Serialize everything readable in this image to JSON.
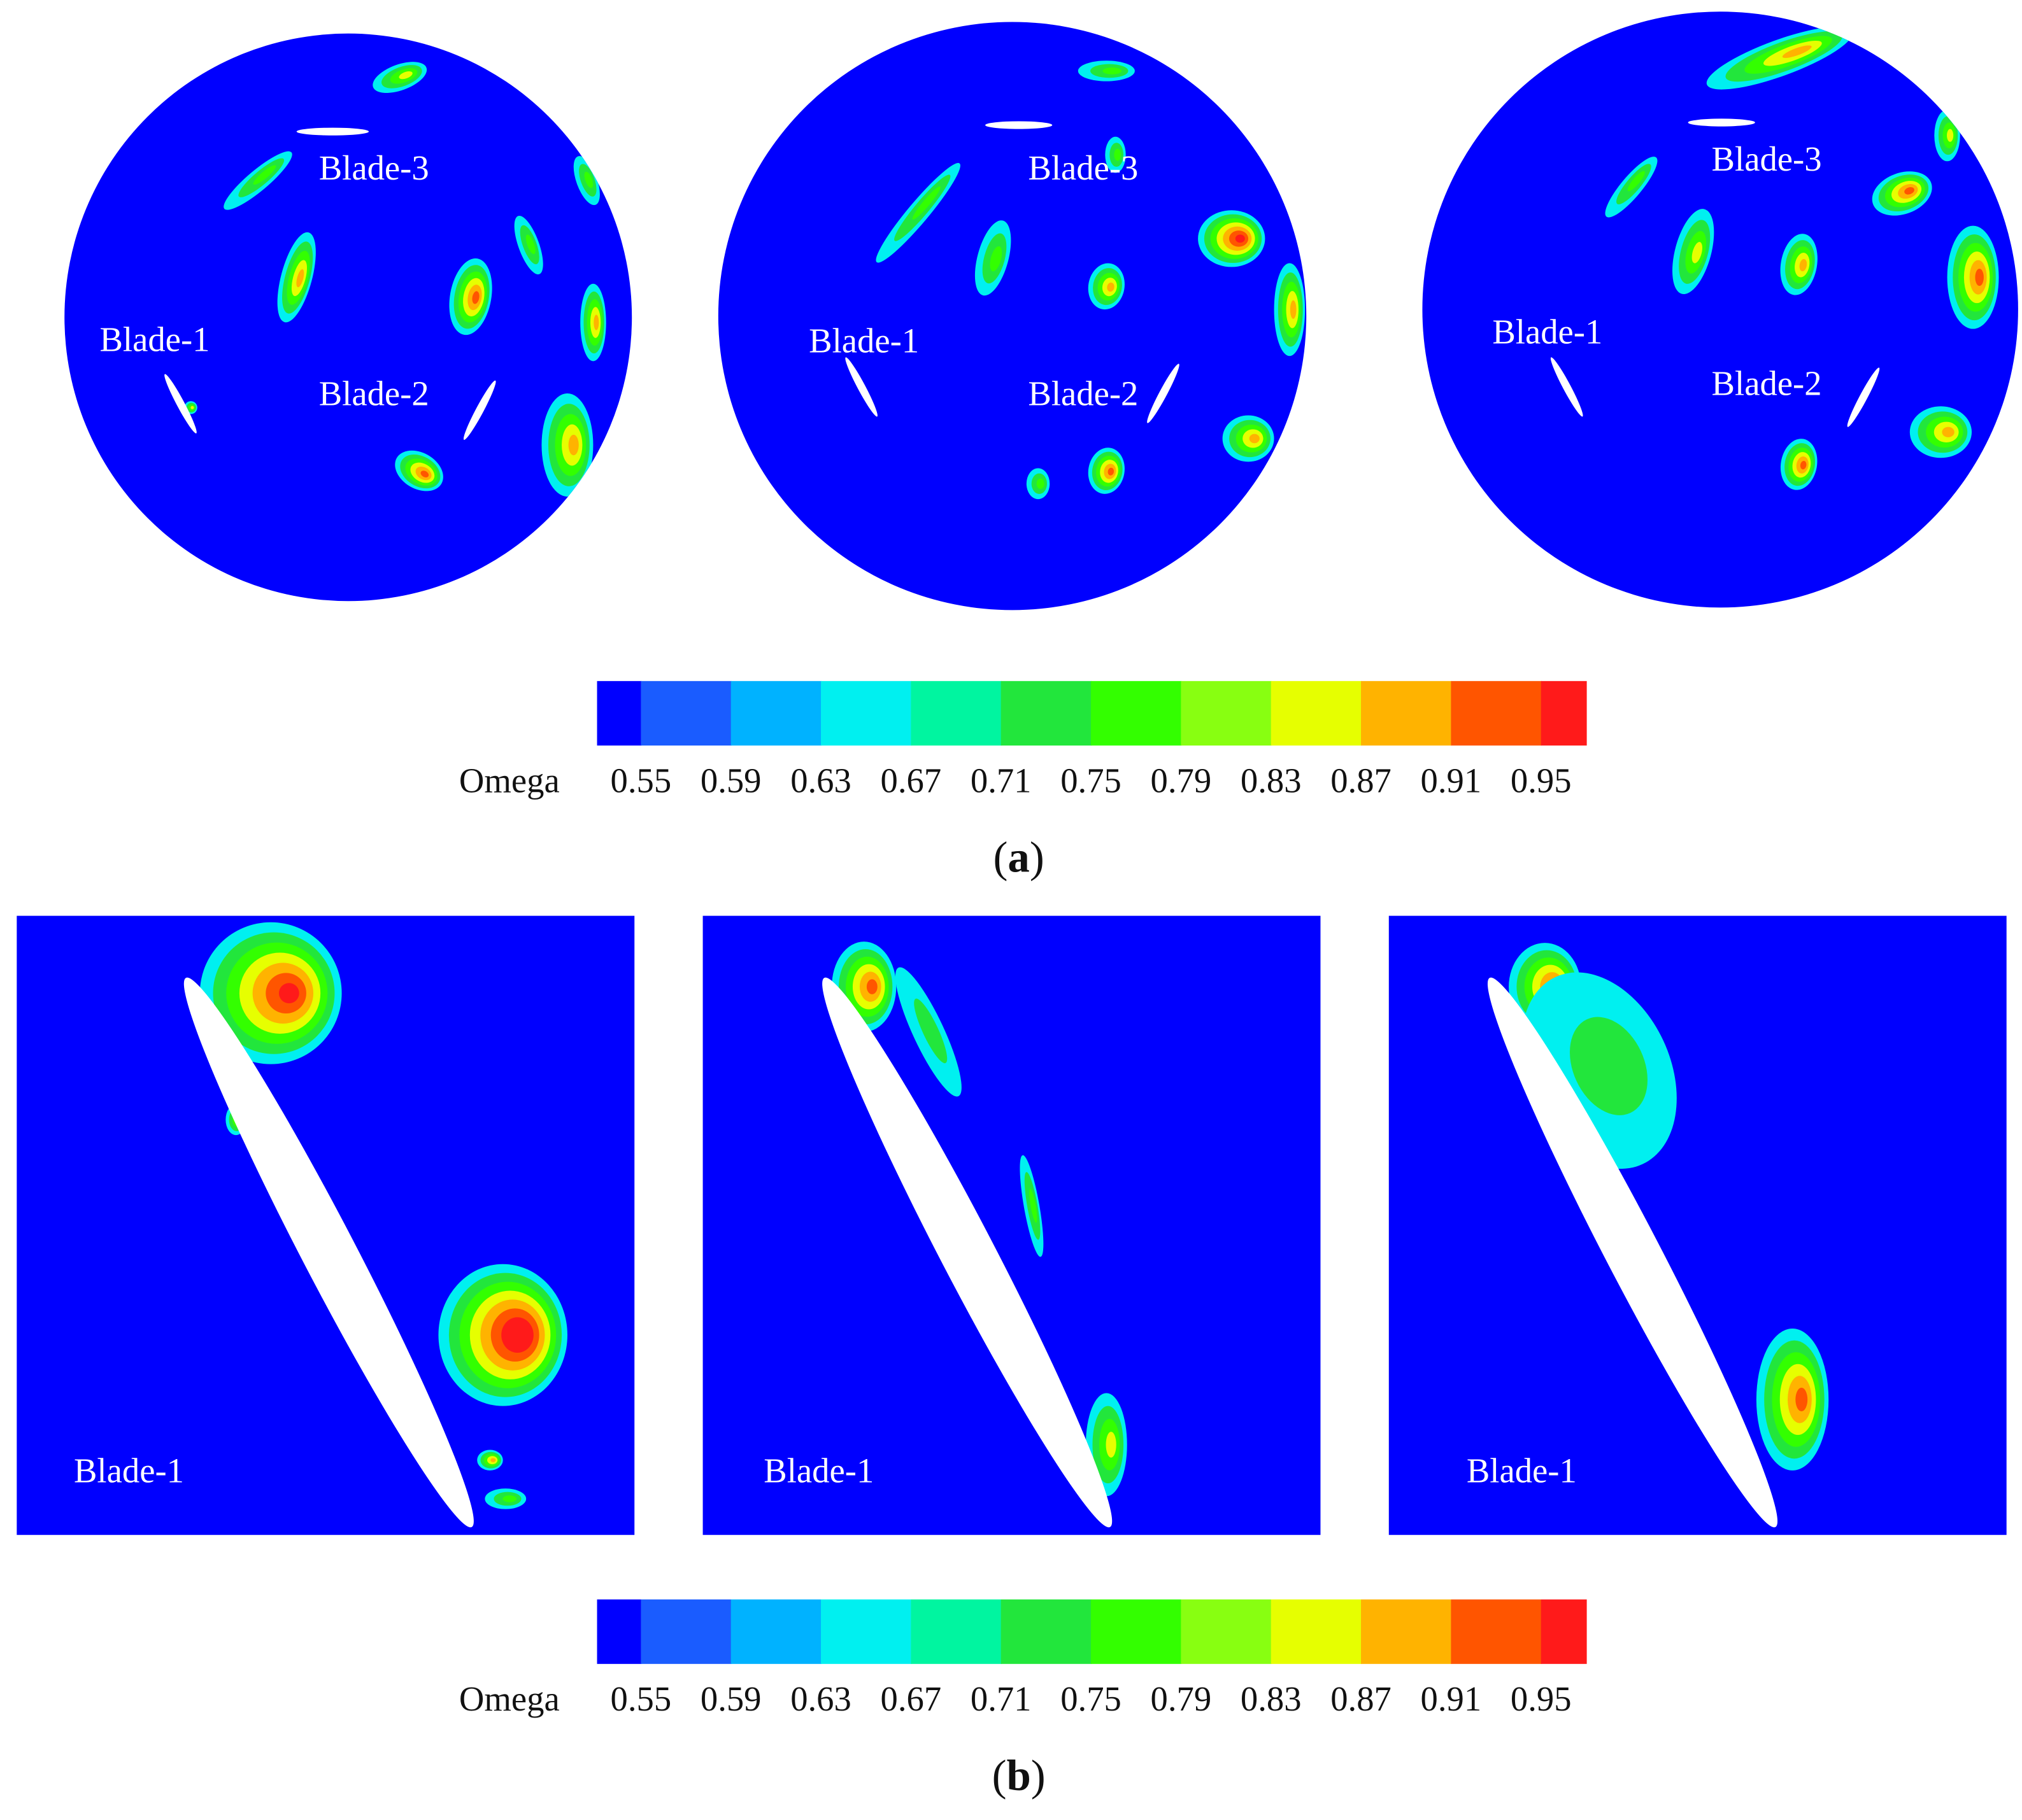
{
  "panel_a": {
    "circles": [
      {
        "labels": [
          "Blade-3",
          "Blade-1",
          "Blade-2"
        ]
      },
      {
        "labels": [
          "Blade-3",
          "Blade-1",
          "Blade-2"
        ]
      },
      {
        "labels": [
          "Blade-3",
          "Blade-1",
          "Blade-2"
        ]
      }
    ],
    "colorbar": {
      "title": "Omega",
      "ticks": [
        0.55,
        0.59,
        0.63,
        0.67,
        0.71,
        0.75,
        0.79,
        0.83,
        0.87,
        0.91,
        0.95
      ],
      "colors": [
        "#0000ff",
        "#1a5cff",
        "#00b2ff",
        "#00f0f0",
        "#00f5a0",
        "#22e63c",
        "#33ff00",
        "#88ff11",
        "#e6ff00",
        "#ffb300",
        "#ff5500",
        "#ff1a1a"
      ]
    },
    "caption": {
      "open": "(",
      "letter": "a",
      "close": ")"
    }
  },
  "panel_b": {
    "squares": [
      {
        "label": "Blade-1"
      },
      {
        "label": "Blade-1"
      },
      {
        "label": "Blade-1"
      }
    ],
    "colorbar": {
      "title": "Omega",
      "ticks": [
        0.55,
        0.59,
        0.63,
        0.67,
        0.71,
        0.75,
        0.79,
        0.83,
        0.87,
        0.91,
        0.95
      ],
      "colors": [
        "#0000ff",
        "#1a5cff",
        "#00b2ff",
        "#00f0f0",
        "#00f5a0",
        "#22e63c",
        "#33ff00",
        "#88ff11",
        "#e6ff00",
        "#ffb300",
        "#ff5500",
        "#ff1a1a"
      ]
    },
    "caption": {
      "open": "(",
      "letter": "b",
      "close": ")"
    }
  }
}
